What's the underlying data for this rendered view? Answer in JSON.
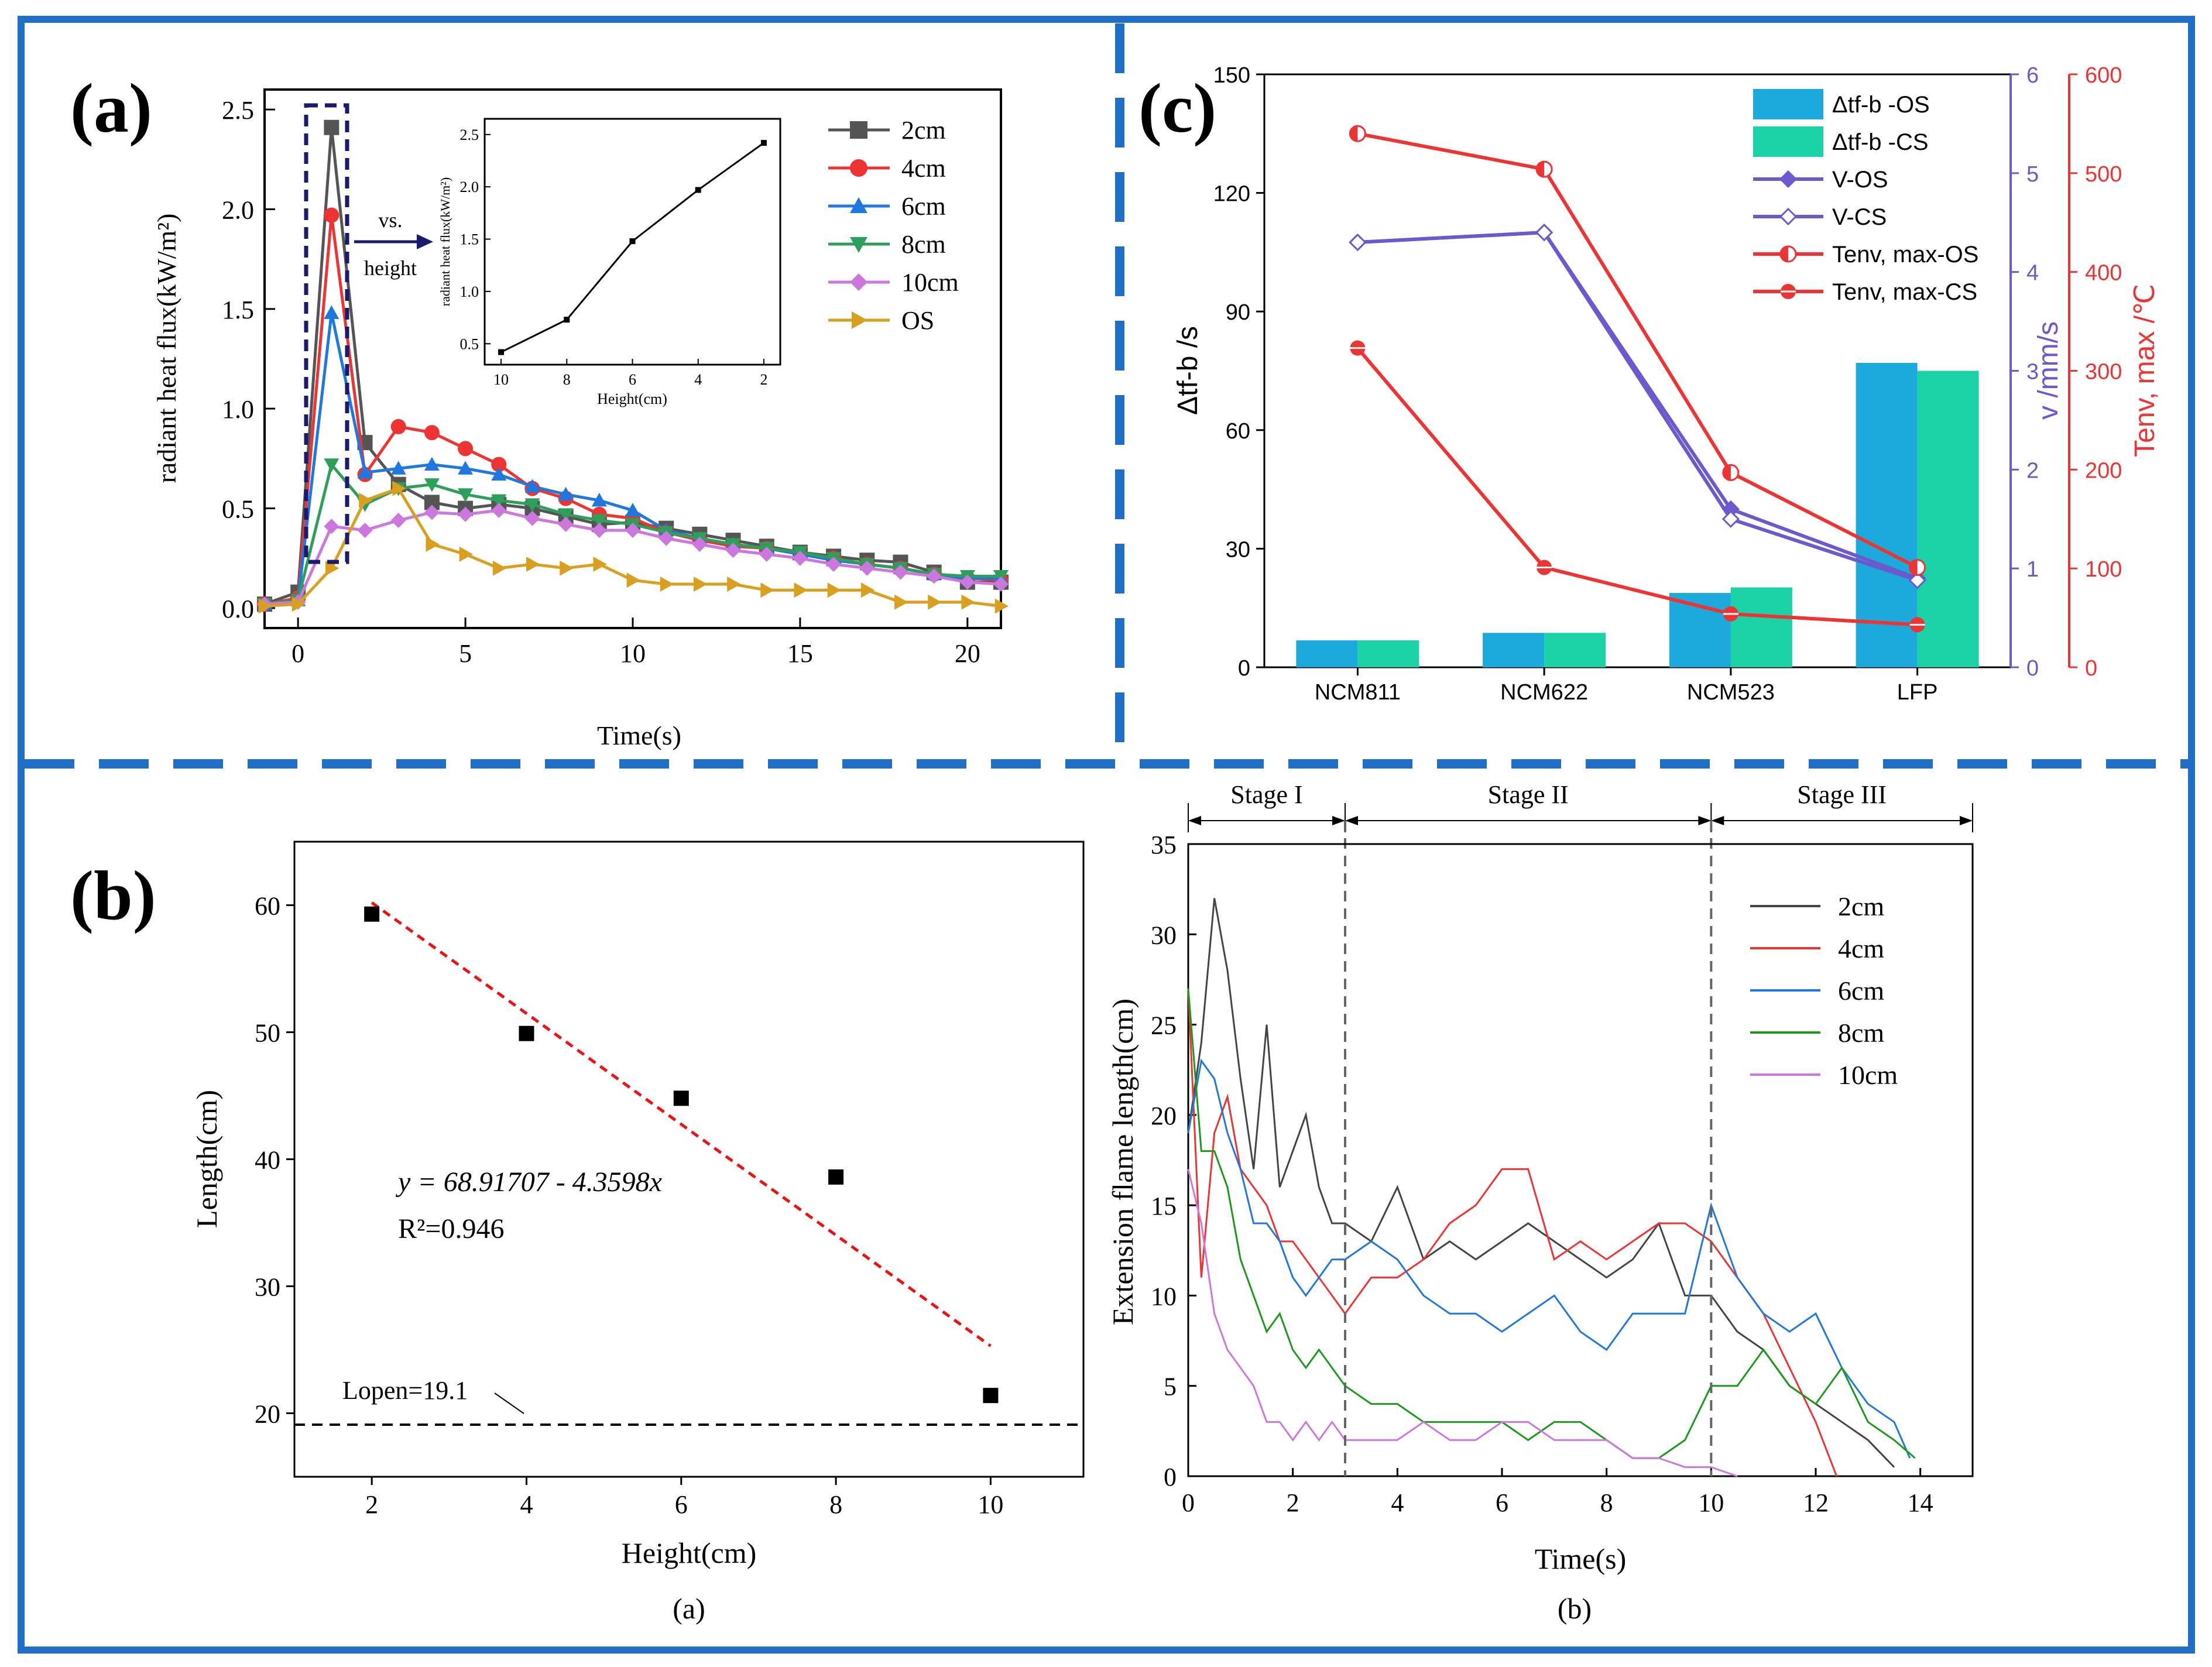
{
  "figure": {
    "frame_color": "#1f6fc8",
    "panel_labels": {
      "a": "(a)",
      "b": "(b)",
      "c": "(c)"
    },
    "sub_captions": {
      "left": "(a)",
      "right": "(b)"
    }
  },
  "chart_data": [
    {
      "id": "radiant",
      "type": "line",
      "title": "",
      "xlabel": "Time(s)",
      "ylabel": "radiant heat flux(kW/m²)",
      "xlim": [
        -1,
        21
      ],
      "ylim": [
        -0.1,
        2.6
      ],
      "xticks": [
        "0",
        "5",
        "10",
        "15",
        "20"
      ],
      "yticks": [
        "0.0",
        "0.5",
        "1.0",
        "1.5",
        "2.0",
        "2.5"
      ],
      "annotation": "vs. height",
      "annotation_lines": [
        "vs.",
        "height"
      ],
      "x": [
        -1,
        0,
        1,
        2,
        3,
        4,
        5,
        6,
        7,
        8,
        9,
        10,
        11,
        12,
        13,
        14,
        15,
        16,
        17,
        18,
        19,
        20,
        21
      ],
      "series": [
        {
          "name": "2cm",
          "color": "#555555",
          "marker": "square",
          "values": [
            0.02,
            0.08,
            2.41,
            0.83,
            0.62,
            0.53,
            0.5,
            0.52,
            0.5,
            0.46,
            0.42,
            0.43,
            0.4,
            0.37,
            0.34,
            0.31,
            0.28,
            0.26,
            0.24,
            0.23,
            0.18,
            0.13,
            0.13
          ]
        },
        {
          "name": "4cm",
          "color": "#ee3333",
          "marker": "circle",
          "values": [
            0.02,
            0.05,
            1.97,
            0.67,
            0.91,
            0.88,
            0.8,
            0.72,
            0.6,
            0.55,
            0.47,
            0.45,
            0.38,
            0.34,
            0.31,
            0.3,
            0.27,
            0.25,
            0.22,
            0.2,
            0.17,
            0.15,
            0.14
          ]
        },
        {
          "name": "6cm",
          "color": "#1f77e0",
          "marker": "triangle-up",
          "values": [
            0.02,
            0.04,
            1.48,
            0.68,
            0.7,
            0.72,
            0.7,
            0.67,
            0.61,
            0.57,
            0.54,
            0.49,
            0.39,
            0.35,
            0.32,
            0.3,
            0.27,
            0.24,
            0.22,
            0.2,
            0.17,
            0.15,
            0.15
          ]
        },
        {
          "name": "8cm",
          "color": "#2ca05a",
          "marker": "triangle-down",
          "values": [
            0.02,
            0.04,
            0.72,
            0.52,
            0.6,
            0.62,
            0.57,
            0.54,
            0.52,
            0.47,
            0.44,
            0.42,
            0.38,
            0.35,
            0.32,
            0.3,
            0.28,
            0.25,
            0.22,
            0.2,
            0.17,
            0.16,
            0.16
          ]
        },
        {
          "name": "10cm",
          "color": "#cc77dd",
          "marker": "diamond",
          "values": [
            0.02,
            0.03,
            0.41,
            0.39,
            0.44,
            0.48,
            0.47,
            0.49,
            0.45,
            0.42,
            0.39,
            0.39,
            0.35,
            0.32,
            0.29,
            0.27,
            0.25,
            0.22,
            0.2,
            0.18,
            0.16,
            0.13,
            0.12
          ]
        },
        {
          "name": "OS",
          "color": "#d9a020",
          "marker": "triangle-right",
          "values": [
            0.01,
            0.02,
            0.2,
            0.54,
            0.6,
            0.32,
            0.27,
            0.2,
            0.22,
            0.2,
            0.22,
            0.14,
            0.12,
            0.12,
            0.12,
            0.09,
            0.09,
            0.09,
            0.09,
            0.03,
            0.03,
            0.03,
            0.01
          ]
        }
      ]
    },
    {
      "id": "inset",
      "type": "line",
      "xlabel": "Height(cm)",
      "ylabel": "radiant heat flux(kW/m²)",
      "xlim": [
        10.5,
        1.5
      ],
      "ylim": [
        0.3,
        2.65
      ],
      "xticks": [
        "10",
        "8",
        "6",
        "4",
        "2"
      ],
      "yticks": [
        "0.5",
        "1.0",
        "1.5",
        "2.0",
        "2.5"
      ],
      "x": [
        10,
        8,
        6,
        4,
        2
      ],
      "values": [
        0.42,
        0.73,
        1.48,
        1.97,
        2.42
      ]
    },
    {
      "id": "length",
      "type": "scatter",
      "xlabel": "Height(cm)",
      "ylabel": "Length(cm)",
      "xlim": [
        1,
        11.2
      ],
      "ylim": [
        15,
        65
      ],
      "xticks": [
        "2",
        "4",
        "6",
        "8",
        "10"
      ],
      "yticks": [
        "20",
        "30",
        "40",
        "50",
        "60"
      ],
      "x": [
        2,
        4,
        6,
        8,
        10
      ],
      "values": [
        59.3,
        49.9,
        44.8,
        38.6,
        21.4
      ],
      "fit": {
        "x0": 2,
        "y0": 60.2,
        "x1": 10,
        "y1": 25.3
      },
      "equation": "y = 68.91707 - 4.3598x",
      "r2": "R²=0.946",
      "baseline": {
        "value": 19.1,
        "label": "Lopen=19.1"
      }
    },
    {
      "id": "materials",
      "type": "bar",
      "categories": [
        "NCM811",
        "NCM622",
        "NCM523",
        "LFP"
      ],
      "ylabel_left": "Δtf-b /s",
      "ylabel_mid": "v /mm/s",
      "ylabel_right": "Tenv, max /℃",
      "ylim_left": [
        0,
        150
      ],
      "ylim_mid": [
        0,
        6
      ],
      "ylim_right": [
        0,
        600
      ],
      "yticks_left": [
        "0",
        "30",
        "60",
        "90",
        "120",
        "150"
      ],
      "yticks_mid": [
        "0",
        "1",
        "2",
        "3",
        "4",
        "5",
        "6"
      ],
      "yticks_right": [
        "0",
        "100",
        "200",
        "300",
        "400",
        "500",
        "600"
      ],
      "bars": [
        {
          "name": "Δtf-b -OS",
          "color": "#1ca9dc",
          "values": [
            6.8,
            8.7,
            18.8,
            77.0
          ]
        },
        {
          "name": "Δtf-b -CS",
          "color": "#19d3a6",
          "values": [
            6.8,
            8.7,
            20.2,
            75.0
          ]
        }
      ],
      "lines": [
        {
          "name": "V-OS",
          "color": "#6a5acd",
          "axis": "mid",
          "marker": "diamond-filled",
          "values": [
            4.3,
            4.4,
            1.6,
            0.9
          ]
        },
        {
          "name": "V-CS",
          "color": "#6a5acd",
          "axis": "mid",
          "marker": "diamond-open",
          "values": [
            4.3,
            4.4,
            1.5,
            0.88
          ]
        },
        {
          "name": "Tenv, max-OS",
          "color": "#ee3333",
          "axis": "right",
          "marker": "circle-half",
          "values": [
            540,
            504,
            197,
            101
          ]
        },
        {
          "name": "Tenv, max-CS",
          "color": "#ee3333",
          "axis": "right",
          "marker": "circle-dot",
          "values": [
            323,
            101,
            54,
            43
          ]
        }
      ],
      "legend_labels": [
        "Δtf-b -OS",
        "Δtf-b -CS",
        "V-OS",
        "V-CS",
        "Tenv, max-OS",
        "Tenv, max-CS"
      ]
    },
    {
      "id": "extension",
      "type": "line",
      "xlabel": "Time(s)",
      "ylabel": "Extension flame length(cm)",
      "xlim": [
        0,
        15
      ],
      "ylim": [
        0,
        35
      ],
      "xticks": [
        "0",
        "2",
        "4",
        "6",
        "8",
        "10",
        "12",
        "14"
      ],
      "yticks": [
        "0",
        "5",
        "10",
        "15",
        "20",
        "25",
        "30",
        "35"
      ],
      "stages": [
        {
          "label": "Stage I",
          "start": 0,
          "end": 3
        },
        {
          "label": "Stage II",
          "start": 3,
          "end": 10
        },
        {
          "label": "Stage III",
          "start": 10,
          "end": 15
        }
      ],
      "series": [
        {
          "name": "2cm",
          "color": "#444444",
          "x": [
            0,
            0.25,
            0.5,
            0.75,
            1.0,
            1.25,
            1.5,
            1.75,
            2.0,
            2.25,
            2.5,
            2.75,
            3.0,
            3.5,
            4.0,
            4.5,
            5.0,
            5.5,
            6.0,
            6.5,
            7.0,
            7.5,
            8.0,
            8.5,
            9.0,
            9.5,
            10.0,
            10.5,
            11.0,
            11.5,
            12.0,
            12.5,
            13.0,
            13.5
          ],
          "values": [
            19,
            24,
            32,
            28,
            22,
            17,
            25,
            16,
            18,
            20,
            16,
            14,
            14,
            13,
            16,
            12,
            13,
            12,
            13,
            14,
            13,
            12,
            11,
            12,
            14,
            10,
            10,
            8,
            7,
            5,
            4,
            3,
            2,
            0.5
          ]
        },
        {
          "name": "4cm",
          "color": "#ee3333",
          "x": [
            0,
            0.25,
            0.5,
            0.75,
            1.0,
            1.25,
            1.5,
            1.75,
            2.0,
            2.25,
            2.5,
            2.75,
            3.0,
            3.5,
            4.0,
            4.5,
            5.0,
            5.5,
            6.0,
            6.5,
            7.0,
            7.5,
            8.0,
            8.5,
            9.0,
            9.5,
            10.0,
            10.5,
            11.0,
            11.5,
            12.0,
            12.4
          ],
          "values": [
            27,
            11,
            19,
            21,
            17,
            16,
            15,
            13,
            13,
            12,
            11,
            10,
            9,
            11,
            11,
            12,
            14,
            15,
            17,
            17,
            12,
            13,
            12,
            13,
            14,
            14,
            13,
            11,
            9,
            6,
            3,
            0
          ]
        },
        {
          "name": "6cm",
          "color": "#1f77e0",
          "x": [
            0,
            0.25,
            0.5,
            0.75,
            1.0,
            1.25,
            1.5,
            1.75,
            2.0,
            2.25,
            2.5,
            2.75,
            3.0,
            3.5,
            4.0,
            4.5,
            5.0,
            5.5,
            6.0,
            6.5,
            7.0,
            7.5,
            8.0,
            8.5,
            9.0,
            9.5,
            10.0,
            10.5,
            11.0,
            11.5,
            12.0,
            12.5,
            13.0,
            13.5,
            13.8
          ],
          "values": [
            19,
            23,
            22,
            19,
            17,
            14,
            14,
            13,
            11,
            10,
            11,
            12,
            12,
            13,
            12,
            10,
            9,
            9,
            8,
            9,
            10,
            8,
            7,
            9,
            9,
            9,
            15,
            11,
            9,
            8,
            9,
            6,
            4,
            3,
            1
          ]
        },
        {
          "name": "8cm",
          "color": "#1a9a1a",
          "x": [
            0,
            0.25,
            0.5,
            0.75,
            1.0,
            1.25,
            1.5,
            1.75,
            2.0,
            2.25,
            2.5,
            2.75,
            3.0,
            3.5,
            4.0,
            4.5,
            5.0,
            5.5,
            6.0,
            6.5,
            7.0,
            7.5,
            8.0,
            8.5,
            9.0,
            9.5,
            10.0,
            10.5,
            11.0,
            11.5,
            12.0,
            12.5,
            13.0,
            13.5,
            13.9
          ],
          "values": [
            27,
            18,
            18,
            16,
            12,
            10,
            8,
            9,
            7,
            6,
            7,
            6,
            5,
            4,
            4,
            3,
            3,
            3,
            3,
            2,
            3,
            3,
            2,
            1,
            1,
            2,
            5,
            5,
            7,
            5,
            4,
            6,
            3,
            2,
            1
          ]
        },
        {
          "name": "10cm",
          "color": "#cc77dd",
          "x": [
            0,
            0.25,
            0.5,
            0.75,
            1.0,
            1.25,
            1.5,
            1.75,
            2.0,
            2.25,
            2.5,
            2.75,
            3.0,
            3.5,
            4.0,
            4.5,
            5.0,
            5.5,
            6.0,
            6.5,
            7.0,
            7.5,
            8.0,
            8.5,
            9.0,
            9.5,
            10.0,
            10.5
          ],
          "values": [
            17,
            14,
            9,
            7,
            6,
            5,
            3,
            3,
            2,
            3,
            2,
            3,
            2,
            2,
            2,
            3,
            2,
            2,
            3,
            3,
            2,
            2,
            2,
            1,
            1,
            0.5,
            0.5,
            0
          ]
        }
      ]
    }
  ]
}
